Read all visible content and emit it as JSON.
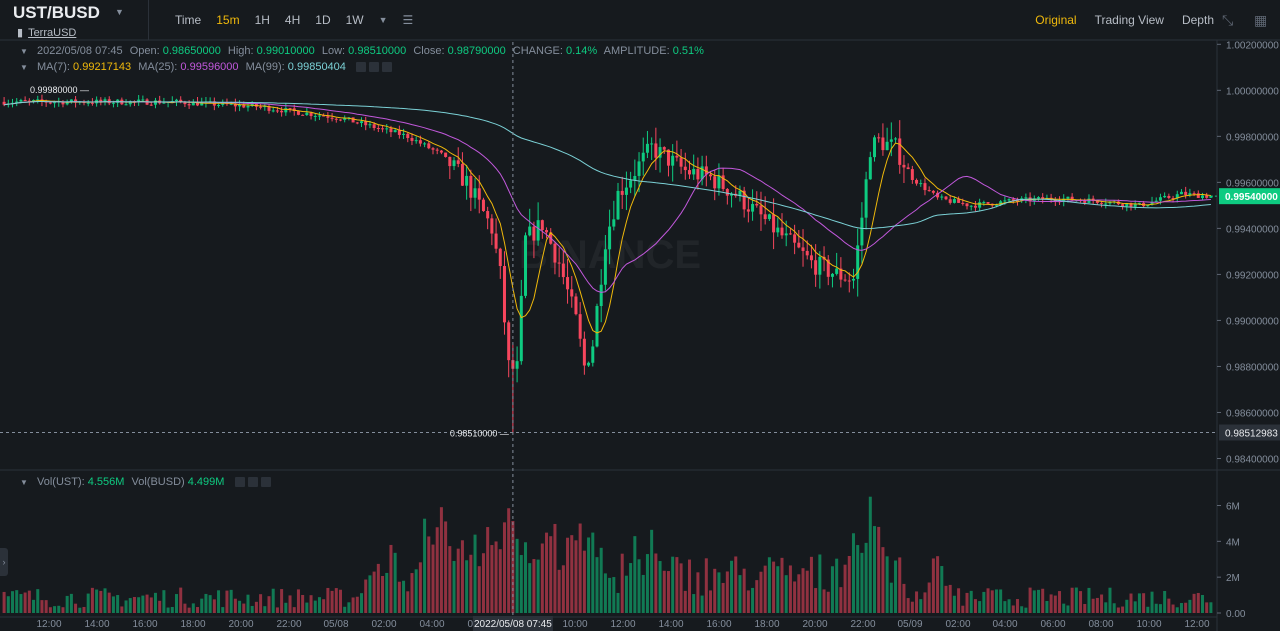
{
  "header": {
    "pair": "UST/BUSD",
    "subtitle": "TerraUSD",
    "intervals": [
      "Time",
      "15m",
      "1H",
      "4H",
      "1D",
      "1W"
    ],
    "active_interval": "15m",
    "views": [
      "Original",
      "Trading View",
      "Depth"
    ],
    "active_view": "Original"
  },
  "ohlc": {
    "date": "2022/05/08 07:45",
    "open_label": "Open:",
    "open": "0.98650000",
    "high_label": "High:",
    "high": "0.99010000",
    "low_label": "Low:",
    "low": "0.98510000",
    "close_label": "Close:",
    "close": "0.98790000",
    "change_label": "CHANGE:",
    "change": "0.14%",
    "amplitude_label": "AMPLITUDE:",
    "amplitude": "0.51%"
  },
  "ma": {
    "ma7_label": "MA(7):",
    "ma7": "0.99217143",
    "ma25_label": "MA(25):",
    "ma25": "0.99596000",
    "ma99_label": "MA(99):",
    "ma99": "0.99850404"
  },
  "volume": {
    "ust_label": "Vol(UST):",
    "ust": "4.556M",
    "busd_label": "Vol(BUSD)",
    "busd": "4.499M"
  },
  "price_axis": {
    "ticks": [
      "1.00200000",
      "1.00000000",
      "0.99800000",
      "0.99600000",
      "0.99400000",
      "0.99200000",
      "0.99000000",
      "0.98800000",
      "0.98600000",
      "0.98400000"
    ],
    "current": "0.99540000",
    "crosshair": "0.98512983",
    "low_marker": "0.98510000",
    "high_marker": "0.99980000"
  },
  "volume_axis": {
    "ticks": [
      "6M",
      "4M",
      "2M",
      "0.00"
    ]
  },
  "time_axis": {
    "ticks": [
      "12:00",
      "14:00",
      "16:00",
      "18:00",
      "20:00",
      "22:00",
      "05/08",
      "02:00",
      "04:00",
      "06:00",
      "10:00",
      "12:00",
      "14:00",
      "16:00",
      "18:00",
      "20:00",
      "22:00",
      "05/09",
      "02:00",
      "04:00",
      "06:00",
      "08:00",
      "10:00",
      "12:00"
    ],
    "crosshair": "2022/05/08 07:45"
  },
  "colors": {
    "background": "#161a1e",
    "up": "#0ecb81",
    "down": "#f6465d",
    "ma7": "#f0b90b",
    "ma25": "#c158db",
    "ma99": "#7bd1d6",
    "accent": "#f0b90b"
  },
  "watermark": "BINANCE",
  "chart_data": {
    "type": "candlestick",
    "interval": "15m",
    "price_range": [
      0.9835,
      1.0021
    ],
    "volume_range": [
      0,
      7200000
    ],
    "anchors": [
      [
        0,
        0.9995
      ],
      [
        40,
        0.9995
      ],
      [
        60,
        0.9993
      ],
      [
        80,
        0.9988
      ],
      [
        88,
        0.9984
      ],
      [
        96,
        0.998
      ],
      [
        104,
        0.9972
      ],
      [
        110,
        0.996
      ],
      [
        116,
        0.994
      ],
      [
        118,
        0.992
      ],
      [
        120,
        0.988
      ],
      [
        121,
        0.9865
      ],
      [
        122,
        0.9879
      ],
      [
        124,
        0.9935
      ],
      [
        128,
        0.9942
      ],
      [
        132,
        0.9925
      ],
      [
        136,
        0.99
      ],
      [
        138,
        0.988
      ],
      [
        140,
        0.989
      ],
      [
        143,
        0.9935
      ],
      [
        146,
        0.9955
      ],
      [
        150,
        0.9965
      ],
      [
        154,
        0.9975
      ],
      [
        158,
        0.997
      ],
      [
        162,
        0.9965
      ],
      [
        168,
        0.9962
      ],
      [
        174,
        0.9955
      ],
      [
        180,
        0.9945
      ],
      [
        186,
        0.9935
      ],
      [
        192,
        0.9925
      ],
      [
        198,
        0.992
      ],
      [
        202,
        0.9918
      ],
      [
        204,
        0.9945
      ],
      [
        206,
        0.9975
      ],
      [
        208,
        0.9978
      ],
      [
        212,
        0.9975
      ],
      [
        216,
        0.9962
      ],
      [
        222,
        0.9953
      ],
      [
        230,
        0.995
      ],
      [
        240,
        0.9952
      ],
      [
        250,
        0.9953
      ],
      [
        260,
        0.9952
      ],
      [
        270,
        0.995
      ],
      [
        280,
        0.9955
      ],
      [
        287,
        0.9954
      ]
    ],
    "volume_spikes": [
      [
        88,
        0.48
      ],
      [
        92,
        0.58
      ],
      [
        100,
        0.75
      ],
      [
        104,
        0.92
      ],
      [
        108,
        0.82
      ],
      [
        112,
        0.65
      ],
      [
        116,
        0.85
      ],
      [
        120,
        0.92
      ],
      [
        124,
        0.7
      ],
      [
        130,
        0.85
      ],
      [
        136,
        0.92
      ],
      [
        140,
        0.82
      ],
      [
        150,
        0.6
      ],
      [
        154,
        0.65
      ],
      [
        202,
        0.7
      ],
      [
        206,
        0.98
      ],
      [
        208,
        0.7
      ],
      [
        222,
        0.52
      ]
    ]
  }
}
